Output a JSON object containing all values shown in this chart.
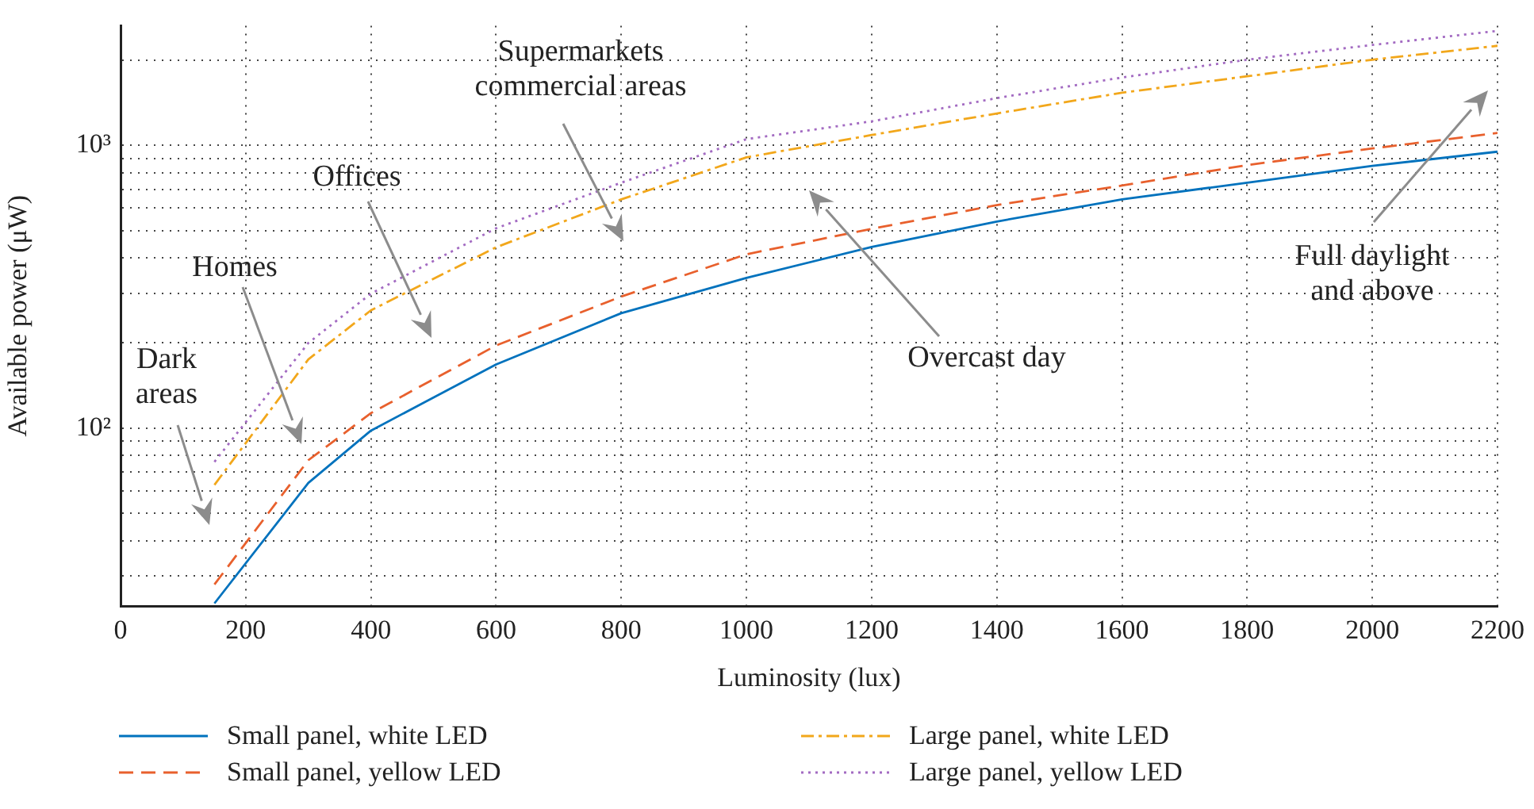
{
  "chart_data": {
    "type": "line",
    "xlabel": "Luminosity (lux)",
    "ylabel": "Available power (μW)",
    "log": "y",
    "x": [
      150,
      300,
      400,
      600,
      800,
      1000,
      1200,
      1400,
      1600,
      1800,
      2000,
      2200
    ],
    "series": [
      {
        "name": "Small panel, white LED",
        "color": "#0072bd",
        "line_style": "solid",
        "values": [
          24,
          64,
          98,
          168,
          255,
          340,
          437,
          538,
          644,
          738,
          846,
          950
        ]
      },
      {
        "name": "Small panel, yellow LED",
        "color": "#e8602d",
        "line_style": "dashed",
        "values": [
          28,
          77,
          113,
          196,
          292,
          412,
          507,
          615,
          721,
          852,
          975,
          1106
        ]
      },
      {
        "name": "Large panel, white LED",
        "color": "#f2a71b",
        "line_style": "dashdot",
        "values": [
          63,
          175,
          261,
          436,
          644,
          907,
          1088,
          1297,
          1535,
          1755,
          2009,
          2250
        ]
      },
      {
        "name": "Large panel, yellow LED",
        "color": "#a36bc2",
        "line_style": "dotted",
        "values": [
          76,
          200,
          299,
          509,
          738,
          1052,
          1216,
          1469,
          1738,
          2009,
          2265,
          2540
        ]
      }
    ],
    "xlim": [
      0,
      2200
    ],
    "xticks": [
      0,
      200,
      400,
      600,
      800,
      1000,
      1200,
      1400,
      1600,
      1800,
      2000,
      2200
    ],
    "ylim": [
      23.5,
      2650
    ],
    "yticks": [
      {
        "value": 30,
        "label": null
      },
      {
        "value": 40,
        "label": null
      },
      {
        "value": 50,
        "label": null
      },
      {
        "value": 60,
        "label": null
      },
      {
        "value": 70,
        "label": null
      },
      {
        "value": 80,
        "label": null
      },
      {
        "value": 90,
        "label": null
      },
      {
        "value": 100,
        "label": "10²"
      },
      {
        "value": 200,
        "label": null
      },
      {
        "value": 300,
        "label": null
      },
      {
        "value": 400,
        "label": null
      },
      {
        "value": 500,
        "label": null
      },
      {
        "value": 600,
        "label": null
      },
      {
        "value": 700,
        "label": null
      },
      {
        "value": 800,
        "label": null
      },
      {
        "value": 900,
        "label": null
      },
      {
        "value": 1000,
        "label": "10³"
      },
      {
        "value": 2000,
        "label": null
      }
    ],
    "grid": true,
    "legend": "bottom",
    "marker": "none",
    "annotations": [
      "Dark\nareas",
      "Homes",
      "Offices",
      "Supermarkets\ncommercial areas",
      "Overcast day",
      "Full daylight\nand above"
    ]
  }
}
